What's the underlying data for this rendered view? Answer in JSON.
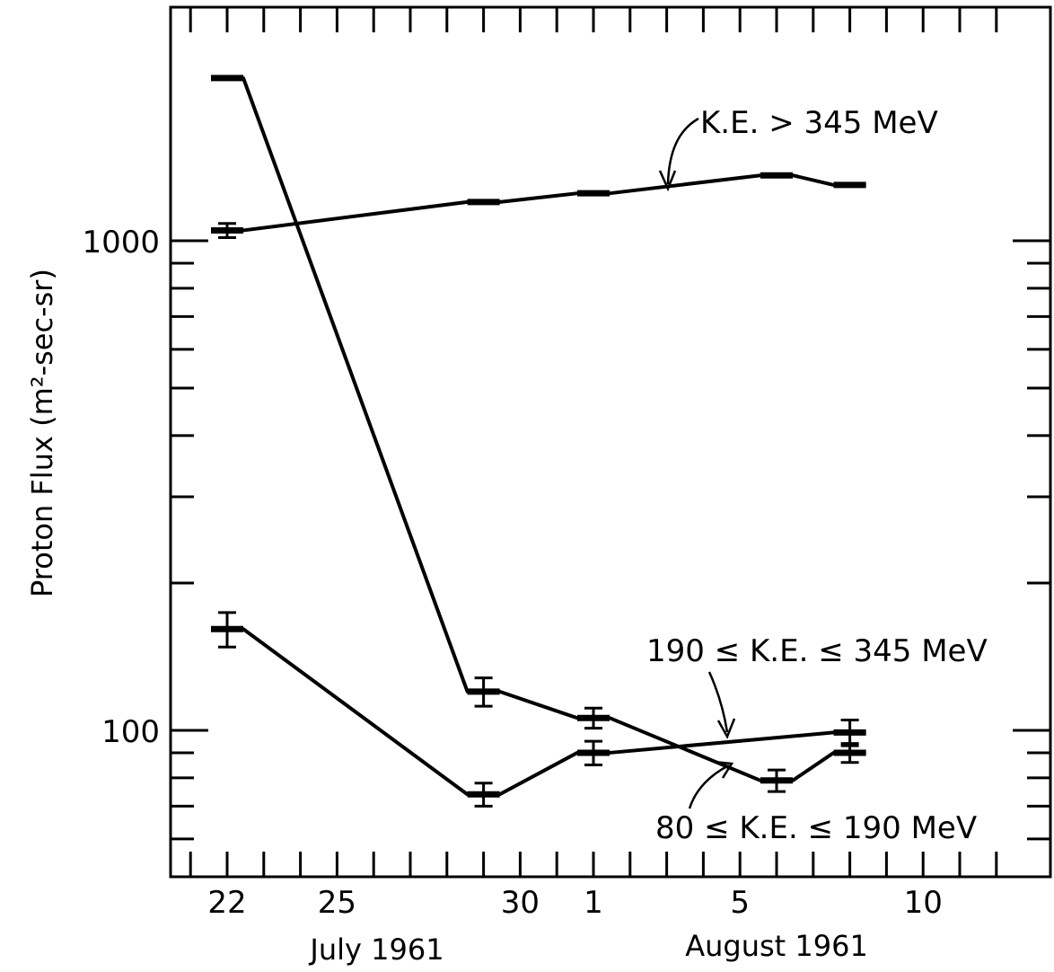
{
  "chart_data": {
    "type": "line",
    "title": "",
    "xlabel": "",
    "ylabel": "Proton Flux  (m²-sec-sr)",
    "yscale": "log",
    "ylim": [
      55,
      1900
    ],
    "xlim": [
      "1961-07-21",
      "1961-08-12"
    ],
    "grid": false,
    "x_tick_labels": [
      {
        "date": "1961-07-22",
        "label": "22"
      },
      {
        "date": "1961-07-25",
        "label": "25"
      },
      {
        "date": "1961-07-30",
        "label": "30"
      },
      {
        "date": "1961-08-01",
        "label": "1"
      },
      {
        "date": "1961-08-05",
        "label": "5"
      },
      {
        "date": "1961-08-10",
        "label": "10"
      }
    ],
    "month_labels": [
      {
        "text": "July 1961"
      },
      {
        "text": "August 1961"
      }
    ],
    "y_tick_labels": [
      {
        "value": 100,
        "label": "100"
      },
      {
        "value": 1000,
        "label": "1000"
      }
    ],
    "series": [
      {
        "name": "K.E. > 345 MeV",
        "points": [
          {
            "x": "1961-07-22",
            "y": 1050,
            "err": 35
          },
          {
            "x": "1961-07-29",
            "y": 1200,
            "err": 0
          },
          {
            "x": "1961-08-01",
            "y": 1250,
            "err": 0
          },
          {
            "x": "1961-08-06",
            "y": 1360,
            "err": 0
          },
          {
            "x": "1961-08-08",
            "y": 1300,
            "err": 0
          }
        ]
      },
      {
        "name": "190 ≤ K.E. ≤ 345 MeV",
        "points": [
          {
            "x": "1961-07-22",
            "y": 2150,
            "err": 0
          },
          {
            "x": "1961-07-29",
            "y": 120,
            "err": 8
          },
          {
            "x": "1961-08-01",
            "y": 106,
            "err": 5
          },
          {
            "x": "1961-08-06",
            "y": 79,
            "err": 4
          },
          {
            "x": "1961-08-08",
            "y": 90,
            "err": 4
          }
        ]
      },
      {
        "name": "80 ≤ K.E. ≤ 190 MeV",
        "points": [
          {
            "x": "1961-07-22",
            "y": 161,
            "err": 13
          },
          {
            "x": "1961-07-29",
            "y": 74,
            "err": 4
          },
          {
            "x": "1961-08-01",
            "y": 90,
            "err": 5
          },
          {
            "x": "1961-08-08",
            "y": 99,
            "err": 6
          }
        ]
      }
    ],
    "annotations": [
      {
        "text": "K.E. > 345 MeV"
      },
      {
        "text": "190 ≤ K.E. ≤ 345 MeV"
      },
      {
        "text": "80 ≤ K.E. ≤ 190 MeV"
      }
    ]
  }
}
